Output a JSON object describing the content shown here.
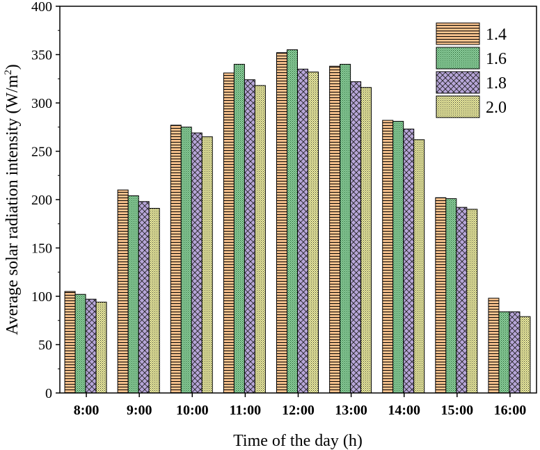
{
  "chart_data": {
    "type": "bar",
    "xlabel": "Time of the day (h)",
    "ylabel_main": "Average solar radiation intensity (W/m",
    "ylabel_sup": "2",
    "ylabel_close": ")",
    "ylim": [
      0,
      400
    ],
    "yticks": [
      0,
      50,
      100,
      150,
      200,
      250,
      300,
      350,
      400
    ],
    "legend_position": "top-right",
    "categories": [
      "8:00",
      "9:00",
      "10:00",
      "11:00",
      "12:00",
      "13:00",
      "14:00",
      "15:00",
      "16:00"
    ],
    "series": [
      {
        "name": "1.4",
        "color": "#f5c08c",
        "pattern": "horizontal-lines",
        "values": [
          105,
          210,
          277,
          331,
          352,
          338,
          282,
          202,
          98
        ]
      },
      {
        "name": "1.6",
        "color": "#8fd19e",
        "pattern": "fine-dots",
        "values": [
          102,
          204,
          275,
          340,
          355,
          340,
          281,
          201,
          84
        ]
      },
      {
        "name": "1.8",
        "color": "#b7a6d9",
        "pattern": "cross-hatch",
        "values": [
          97,
          198,
          269,
          324,
          335,
          322,
          273,
          192,
          84
        ]
      },
      {
        "name": "2.0",
        "color": "#f2f2a0",
        "pattern": "dots",
        "values": [
          94,
          191,
          265,
          318,
          332,
          316,
          262,
          190,
          79
        ]
      }
    ]
  }
}
